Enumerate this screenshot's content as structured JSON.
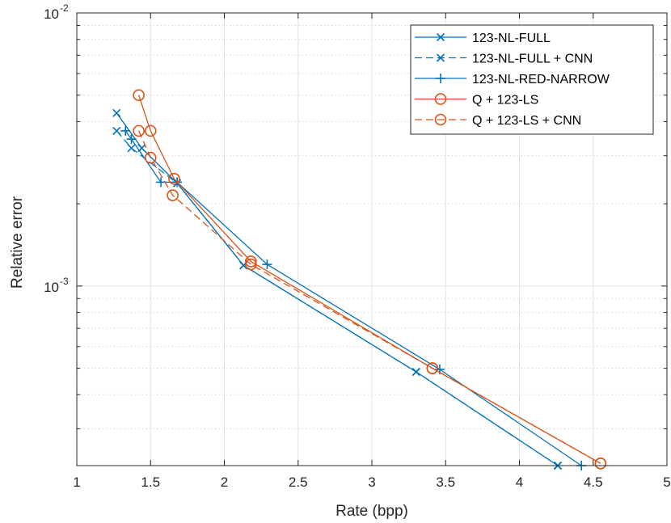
{
  "chart_data": {
    "type": "line",
    "xlabel": "Rate (bpp)",
    "ylabel": "Relative error",
    "xlim": [
      1,
      5
    ],
    "ylim": [
      0.00022,
      0.01
    ],
    "yscale": "log",
    "grid": true,
    "legend_position": "top-right",
    "xticks": [
      1,
      1.5,
      2,
      2.5,
      3,
      3.5,
      4,
      4.5,
      5
    ],
    "xtick_labels": [
      "1",
      "1.5",
      "2",
      "2.5",
      "3",
      "3.5",
      "4",
      "4.5",
      "5"
    ],
    "yticks": [
      {
        "value": 0.01,
        "base": "10",
        "exp": "-2"
      },
      {
        "value": 0.001,
        "base": "10",
        "exp": "-3"
      }
    ],
    "series": [
      {
        "name": "123-NL-FULL",
        "color": "#0072bd",
        "dash": "solid",
        "marker": "x",
        "points": [
          [
            1.27,
            0.0043
          ],
          [
            1.44,
            0.0032
          ],
          [
            1.68,
            0.00238
          ],
          [
            2.13,
            0.00119
          ],
          [
            3.3,
            0.000485
          ],
          [
            4.26,
            0.00022
          ]
        ]
      },
      {
        "name": "123-NL-FULL + CNN",
        "color": "#0072bd",
        "dash": "dashed",
        "marker": "x",
        "points": [
          [
            1.27,
            0.0037
          ],
          [
            1.37,
            0.0032
          ],
          [
            1.68,
            0.00238
          ],
          [
            2.13,
            0.00119
          ],
          [
            3.3,
            0.000485
          ],
          [
            4.26,
            0.00022
          ]
        ]
      },
      {
        "name": "123-NL-RED-NARROW",
        "color": "#0072bd",
        "dash": "solid",
        "marker": "+",
        "points": [
          [
            1.33,
            0.0037
          ],
          [
            1.37,
            0.00345
          ],
          [
            1.57,
            0.0024
          ],
          [
            1.68,
            0.0024
          ],
          [
            2.29,
            0.0012
          ],
          [
            3.46,
            0.000495
          ],
          [
            4.42,
            0.00022
          ]
        ]
      },
      {
        "name": "Q + 123-LS",
        "color": "#d95319",
        "dash": "solid",
        "marker": "o",
        "points": [
          [
            1.42,
            0.005
          ],
          [
            1.5,
            0.0037
          ],
          [
            1.66,
            0.00247
          ],
          [
            2.18,
            0.00123
          ],
          [
            3.41,
            0.0005
          ],
          [
            4.55,
            0.000224
          ]
        ]
      },
      {
        "name": "Q + 123-LS + CNN",
        "color": "#d95319",
        "dash": "dashed",
        "marker": "o",
        "points": [
          [
            1.42,
            0.0037
          ],
          [
            1.5,
            0.00295
          ],
          [
            1.65,
            0.00215
          ],
          [
            2.18,
            0.0012
          ],
          [
            3.41,
            0.0005
          ],
          [
            4.55,
            0.000224
          ]
        ]
      }
    ]
  }
}
